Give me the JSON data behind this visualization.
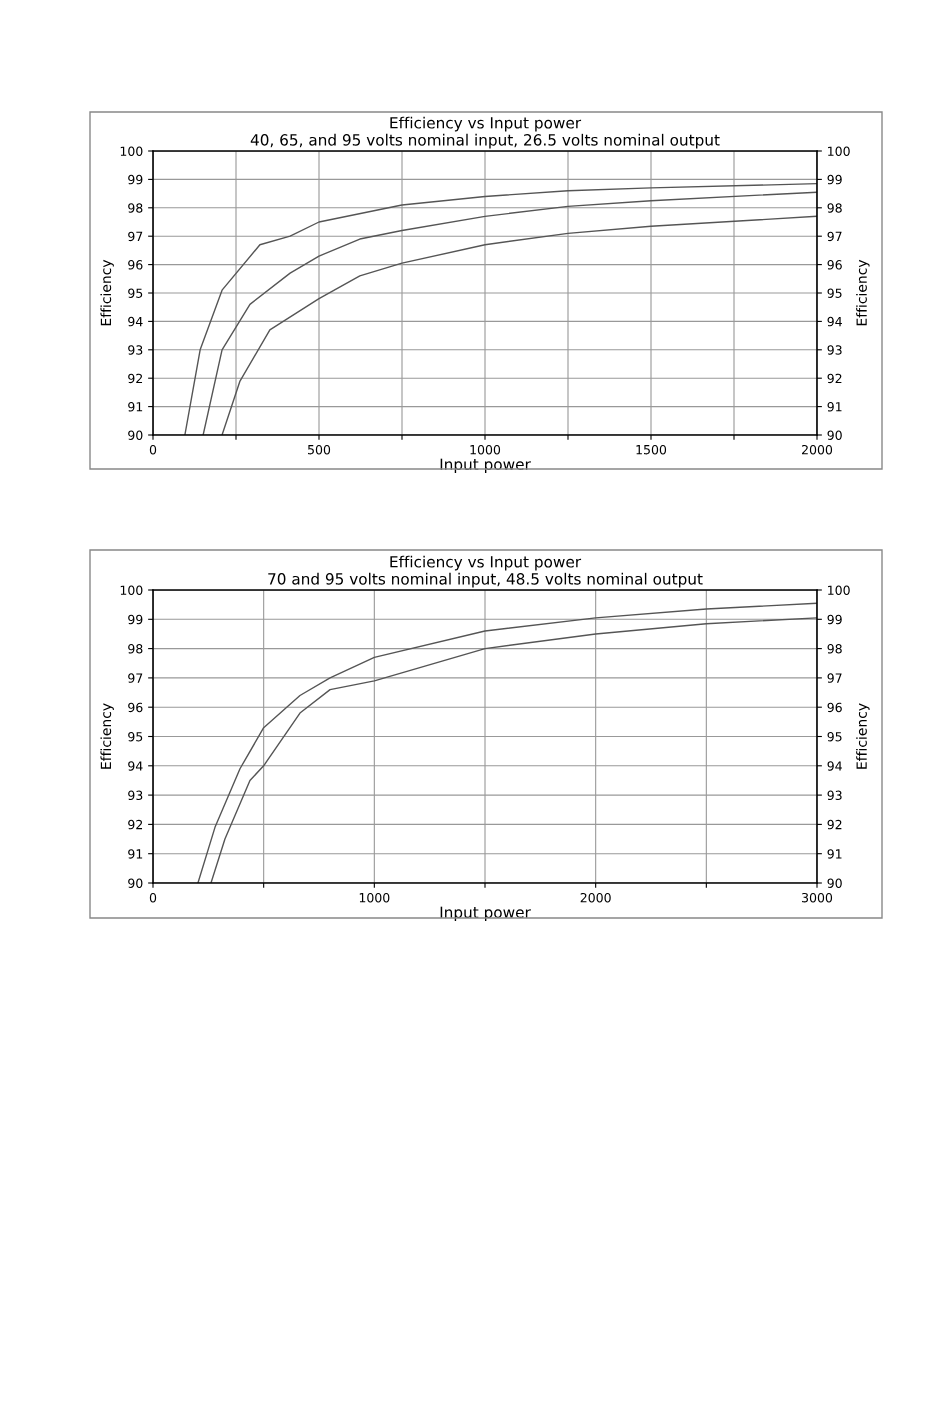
{
  "chart_data": [
    {
      "type": "line",
      "title": "Efficiency vs Input power",
      "subtitle": "40, 65, and 95 volts nominal input, 26.5 volts nominal output",
      "xlabel": "Input power",
      "ylabel": "Efficiency",
      "y2label": "Efficiency",
      "xlim": [
        0,
        2000
      ],
      "xticks": [
        0,
        {
          "value": 250,
          "label": null
        },
        500,
        {
          "value": 750,
          "label": null
        },
        1000,
        {
          "value": 1250,
          "label": null
        },
        1500,
        {
          "value": 1750,
          "label": null
        },
        2000
      ],
      "ylim": [
        90,
        100
      ],
      "yticks": [
        90,
        91,
        92,
        93,
        94,
        95,
        96,
        97,
        98,
        99,
        100
      ],
      "y2lim": [
        90,
        100
      ],
      "y2ticks": [
        90,
        91,
        92,
        93,
        94,
        95,
        96,
        97,
        98,
        99,
        100
      ],
      "grid": true,
      "marker": "none",
      "line_style": "solid",
      "series": [
        {
          "color": "#555555",
          "x": [
            96,
            142,
            208,
            322,
            413,
            500,
            750,
            1000,
            1250,
            1500,
            2000
          ],
          "values": [
            90,
            93,
            95.1,
            96.7,
            97.0,
            97.5,
            98.1,
            98.4,
            98.6,
            98.7,
            98.85
          ]
        },
        {
          "color": "#555555",
          "x": [
            151,
            208,
            292,
            413,
            500,
            623,
            750,
            1000,
            1250,
            1500,
            2000
          ],
          "values": [
            90,
            93,
            94.6,
            95.7,
            96.3,
            96.9,
            97.2,
            97.7,
            98.05,
            98.25,
            98.55
          ]
        },
        {
          "color": "#555555",
          "x": [
            208,
            262,
            352,
            500,
            623,
            750,
            1000,
            1250,
            1500,
            2000
          ],
          "values": [
            90,
            91.9,
            93.7,
            94.8,
            95.6,
            96.05,
            96.7,
            97.1,
            97.35,
            97.7
          ]
        }
      ]
    },
    {
      "type": "line",
      "title": "Efficiency vs Input power",
      "subtitle": "70 and 95 volts nominal input, 48.5 volts nominal output",
      "xlabel": "Input power",
      "ylabel": "Efficiency",
      "y2label": "Efficiency",
      "xlim": [
        0,
        3000
      ],
      "xticks": [
        0,
        {
          "value": 500,
          "label": null
        },
        1000,
        {
          "value": 1500,
          "label": null
        },
        2000,
        {
          "value": 2500,
          "label": null
        },
        3000
      ],
      "ylim": [
        90,
        100
      ],
      "yticks": [
        90,
        91,
        92,
        93,
        94,
        95,
        96,
        97,
        98,
        99,
        100
      ],
      "y2lim": [
        90,
        100
      ],
      "y2ticks": [
        90,
        91,
        92,
        93,
        94,
        95,
        96,
        97,
        98,
        99,
        100
      ],
      "grid": true,
      "marker": "none",
      "line_style": "solid",
      "series": [
        {
          "color": "#555555",
          "x": [
            203,
            280,
            393,
            500,
            664,
            800,
            1000,
            1500,
            2000,
            2500,
            3000
          ],
          "values": [
            90,
            91.9,
            93.9,
            95.3,
            96.4,
            97.0,
            97.7,
            98.6,
            99.05,
            99.35,
            99.55
          ]
        },
        {
          "color": "#555555",
          "x": [
            262,
            325,
            438,
            500,
            664,
            800,
            1000,
            1500,
            2000,
            2500,
            3000
          ],
          "values": [
            90,
            91.5,
            93.5,
            94.0,
            95.8,
            96.6,
            96.9,
            98.0,
            98.5,
            98.85,
            99.05
          ]
        }
      ]
    }
  ]
}
